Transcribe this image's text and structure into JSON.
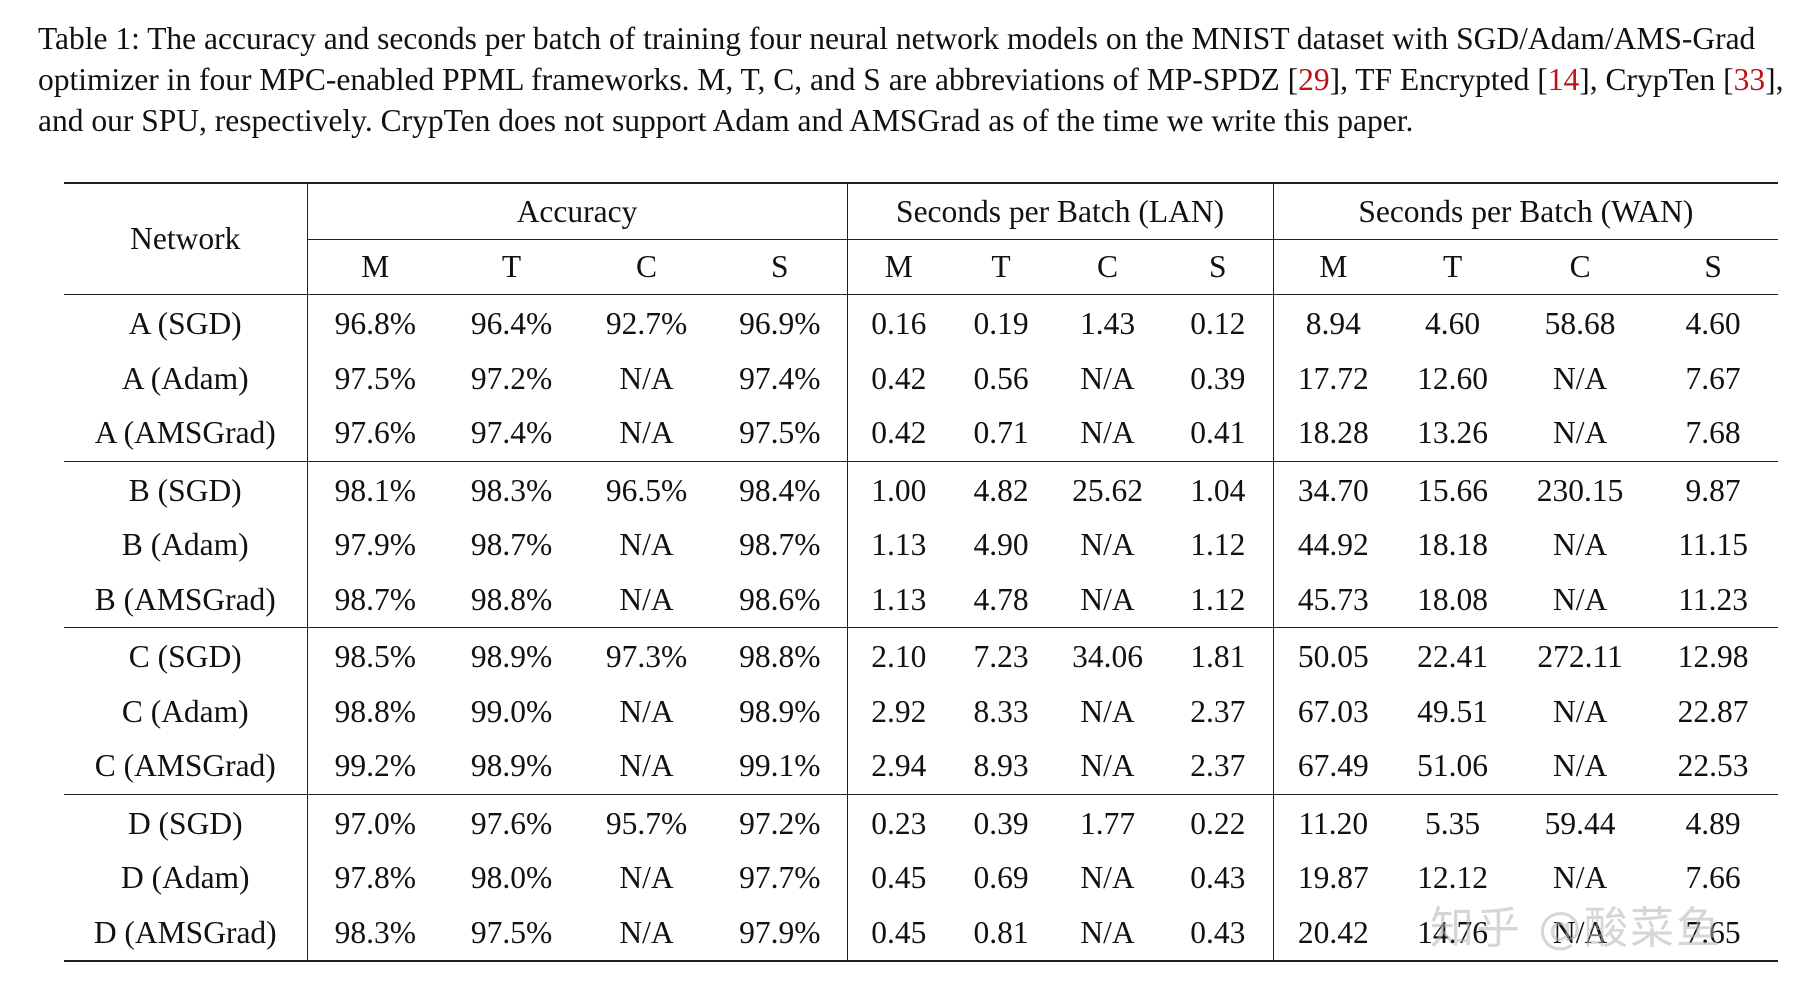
{
  "caption": {
    "part1": "Table 1: The accuracy and seconds per batch of training four neural network models on the MNIST dataset with SGD/Adam/AMS-Grad optimizer in four MPC-enabled PPML frameworks. M, T, C, and S are abbreviations of MP-SPDZ [",
    "ref1": "29",
    "part2": "], TF Encrypted [",
    "ref2": "14",
    "part3": "], CrypTen [",
    "ref3": "33",
    "part4": "], and our SPU, respectively. CrypTen does not support Adam and AMSGrad as of the time we write this paper."
  },
  "table": {
    "network_header": "Network",
    "group_headers": [
      "Accuracy",
      "Seconds per Batch (LAN)",
      "Seconds per Batch (WAN)"
    ],
    "sub_headers": [
      "M",
      "T",
      "C",
      "S",
      "M",
      "T",
      "C",
      "S",
      "M",
      "T",
      "C",
      "S"
    ],
    "groups": [
      {
        "rows": [
          {
            "network": "A (SGD)",
            "cells": [
              {
                "v": "96.8%",
                "b": false
              },
              {
                "v": "96.4%",
                "b": false
              },
              {
                "v": "92.7%",
                "b": false
              },
              {
                "v": "96.9%",
                "b": true
              },
              {
                "v": "0.16",
                "b": false
              },
              {
                "v": "0.19",
                "b": false
              },
              {
                "v": "1.43",
                "b": false
              },
              {
                "v": "0.12",
                "b": true
              },
              {
                "v": "8.94",
                "b": false
              },
              {
                "v": "4.60",
                "b": true
              },
              {
                "v": "58.68",
                "b": false
              },
              {
                "v": "4.60",
                "b": true
              }
            ]
          },
          {
            "network": "A (Adam)",
            "cells": [
              {
                "v": "97.5%",
                "b": true
              },
              {
                "v": "97.2%",
                "b": false
              },
              {
                "v": "N/A",
                "b": false
              },
              {
                "v": "97.4%",
                "b": false
              },
              {
                "v": "0.42",
                "b": false
              },
              {
                "v": "0.56",
                "b": false
              },
              {
                "v": "N/A",
                "b": false
              },
              {
                "v": "0.39",
                "b": true
              },
              {
                "v": "17.72",
                "b": false
              },
              {
                "v": "12.60",
                "b": false
              },
              {
                "v": "N/A",
                "b": false
              },
              {
                "v": "7.67",
                "b": true
              }
            ]
          },
          {
            "network": "A (AMSGrad)",
            "cells": [
              {
                "v": "97.6%",
                "b": true
              },
              {
                "v": "97.4%",
                "b": false
              },
              {
                "v": "N/A",
                "b": false
              },
              {
                "v": "97.5%",
                "b": false
              },
              {
                "v": "0.42",
                "b": false
              },
              {
                "v": "0.71",
                "b": false
              },
              {
                "v": "N/A",
                "b": false
              },
              {
                "v": "0.41",
                "b": true
              },
              {
                "v": "18.28",
                "b": false
              },
              {
                "v": "13.26",
                "b": false
              },
              {
                "v": "N/A",
                "b": false
              },
              {
                "v": "7.68",
                "b": true
              }
            ]
          }
        ]
      },
      {
        "rows": [
          {
            "network": "B (SGD)",
            "cells": [
              {
                "v": "98.1%",
                "b": false
              },
              {
                "v": "98.3%",
                "b": false
              },
              {
                "v": "96.5%",
                "b": false
              },
              {
                "v": "98.4%",
                "b": true
              },
              {
                "v": "1.00",
                "b": true
              },
              {
                "v": "4.82",
                "b": false
              },
              {
                "v": "25.62",
                "b": false
              },
              {
                "v": "1.04",
                "b": false
              },
              {
                "v": "34.70",
                "b": false
              },
              {
                "v": "15.66",
                "b": false
              },
              {
                "v": "230.15",
                "b": false
              },
              {
                "v": "9.87",
                "b": true
              }
            ]
          },
          {
            "network": "B (Adam)",
            "cells": [
              {
                "v": "97.9%",
                "b": false
              },
              {
                "v": "98.7%",
                "b": true
              },
              {
                "v": "N/A",
                "b": false
              },
              {
                "v": "98.7%",
                "b": true
              },
              {
                "v": "1.13",
                "b": false
              },
              {
                "v": "4.90",
                "b": false
              },
              {
                "v": "N/A",
                "b": false
              },
              {
                "v": "1.12",
                "b": true
              },
              {
                "v": "44.92",
                "b": false
              },
              {
                "v": "18.18",
                "b": false
              },
              {
                "v": "N/A",
                "b": false
              },
              {
                "v": "11.15",
                "b": true
              }
            ]
          },
          {
            "network": "B (AMSGrad)",
            "cells": [
              {
                "v": "98.7%",
                "b": false
              },
              {
                "v": "98.8%",
                "b": true
              },
              {
                "v": "N/A",
                "b": false
              },
              {
                "v": "98.6%",
                "b": false
              },
              {
                "v": "1.13",
                "b": false
              },
              {
                "v": "4.78",
                "b": false
              },
              {
                "v": "N/A",
                "b": false
              },
              {
                "v": "1.12",
                "b": true
              },
              {
                "v": "45.73",
                "b": false
              },
              {
                "v": "18.08",
                "b": false
              },
              {
                "v": "N/A",
                "b": false
              },
              {
                "v": "11.23",
                "b": true
              }
            ]
          }
        ]
      },
      {
        "rows": [
          {
            "network": "C (SGD)",
            "cells": [
              {
                "v": "98.5%",
                "b": false
              },
              {
                "v": "98.9%",
                "b": true
              },
              {
                "v": "97.3%",
                "b": false
              },
              {
                "v": "98.8%",
                "b": false
              },
              {
                "v": "2.10",
                "b": false
              },
              {
                "v": "7.23",
                "b": false
              },
              {
                "v": "34.06",
                "b": false
              },
              {
                "v": "1.81",
                "b": true
              },
              {
                "v": "50.05",
                "b": false
              },
              {
                "v": "22.41",
                "b": false
              },
              {
                "v": "272.11",
                "b": false
              },
              {
                "v": "12.98",
                "b": true
              }
            ]
          },
          {
            "network": "C (Adam)",
            "cells": [
              {
                "v": "98.8%",
                "b": false
              },
              {
                "v": "99.0%",
                "b": true
              },
              {
                "v": "N/A",
                "b": false
              },
              {
                "v": "98.9%",
                "b": false
              },
              {
                "v": "2.92",
                "b": false
              },
              {
                "v": "8.33",
                "b": false
              },
              {
                "v": "N/A",
                "b": false
              },
              {
                "v": "2.37",
                "b": true
              },
              {
                "v": "67.03",
                "b": false
              },
              {
                "v": "49.51",
                "b": false
              },
              {
                "v": "N/A",
                "b": false
              },
              {
                "v": "22.87",
                "b": true
              }
            ]
          },
          {
            "network": "C (AMSGrad)",
            "cells": [
              {
                "v": "99.2%",
                "b": true
              },
              {
                "v": "98.9%",
                "b": false
              },
              {
                "v": "N/A",
                "b": false
              },
              {
                "v": "99.1%",
                "b": false
              },
              {
                "v": "2.94",
                "b": false
              },
              {
                "v": "8.93",
                "b": false
              },
              {
                "v": "N/A",
                "b": false
              },
              {
                "v": "2.37",
                "b": true
              },
              {
                "v": "67.49",
                "b": false
              },
              {
                "v": "51.06",
                "b": false
              },
              {
                "v": "N/A",
                "b": false
              },
              {
                "v": "22.53",
                "b": true
              }
            ]
          }
        ]
      },
      {
        "rows": [
          {
            "network": "D (SGD)",
            "cells": [
              {
                "v": "97.0%",
                "b": false
              },
              {
                "v": "97.6%",
                "b": true
              },
              {
                "v": "95.7%",
                "b": false
              },
              {
                "v": "97.2%",
                "b": false
              },
              {
                "v": "0.23",
                "b": false
              },
              {
                "v": "0.39",
                "b": false
              },
              {
                "v": "1.77",
                "b": false
              },
              {
                "v": "0.22",
                "b": true
              },
              {
                "v": "11.20",
                "b": false
              },
              {
                "v": "5.35",
                "b": false
              },
              {
                "v": "59.44",
                "b": false
              },
              {
                "v": "4.89",
                "b": true
              }
            ]
          },
          {
            "network": "D (Adam)",
            "cells": [
              {
                "v": "97.8%",
                "b": false
              },
              {
                "v": "98.0%",
                "b": true
              },
              {
                "v": "N/A",
                "b": false
              },
              {
                "v": "97.7%",
                "b": false
              },
              {
                "v": "0.45",
                "b": false
              },
              {
                "v": "0.69",
                "b": false
              },
              {
                "v": "N/A",
                "b": false
              },
              {
                "v": "0.43",
                "b": true
              },
              {
                "v": "19.87",
                "b": false
              },
              {
                "v": "12.12",
                "b": false
              },
              {
                "v": "N/A",
                "b": false
              },
              {
                "v": "7.66",
                "b": true
              }
            ]
          },
          {
            "network": "D (AMSGrad)",
            "cells": [
              {
                "v": "98.3%",
                "b": true
              },
              {
                "v": "97.5%",
                "b": false
              },
              {
                "v": "N/A",
                "b": false
              },
              {
                "v": "97.9%",
                "b": false
              },
              {
                "v": "0.45",
                "b": false
              },
              {
                "v": "0.81",
                "b": false
              },
              {
                "v": "N/A",
                "b": false
              },
              {
                "v": "0.43",
                "b": true
              },
              {
                "v": "20.42",
                "b": false
              },
              {
                "v": "14.76",
                "b": false
              },
              {
                "v": "N/A",
                "b": false
              },
              {
                "v": "7.65",
                "b": true
              }
            ]
          }
        ]
      }
    ]
  },
  "watermark": "知乎 @酸菜鱼"
}
